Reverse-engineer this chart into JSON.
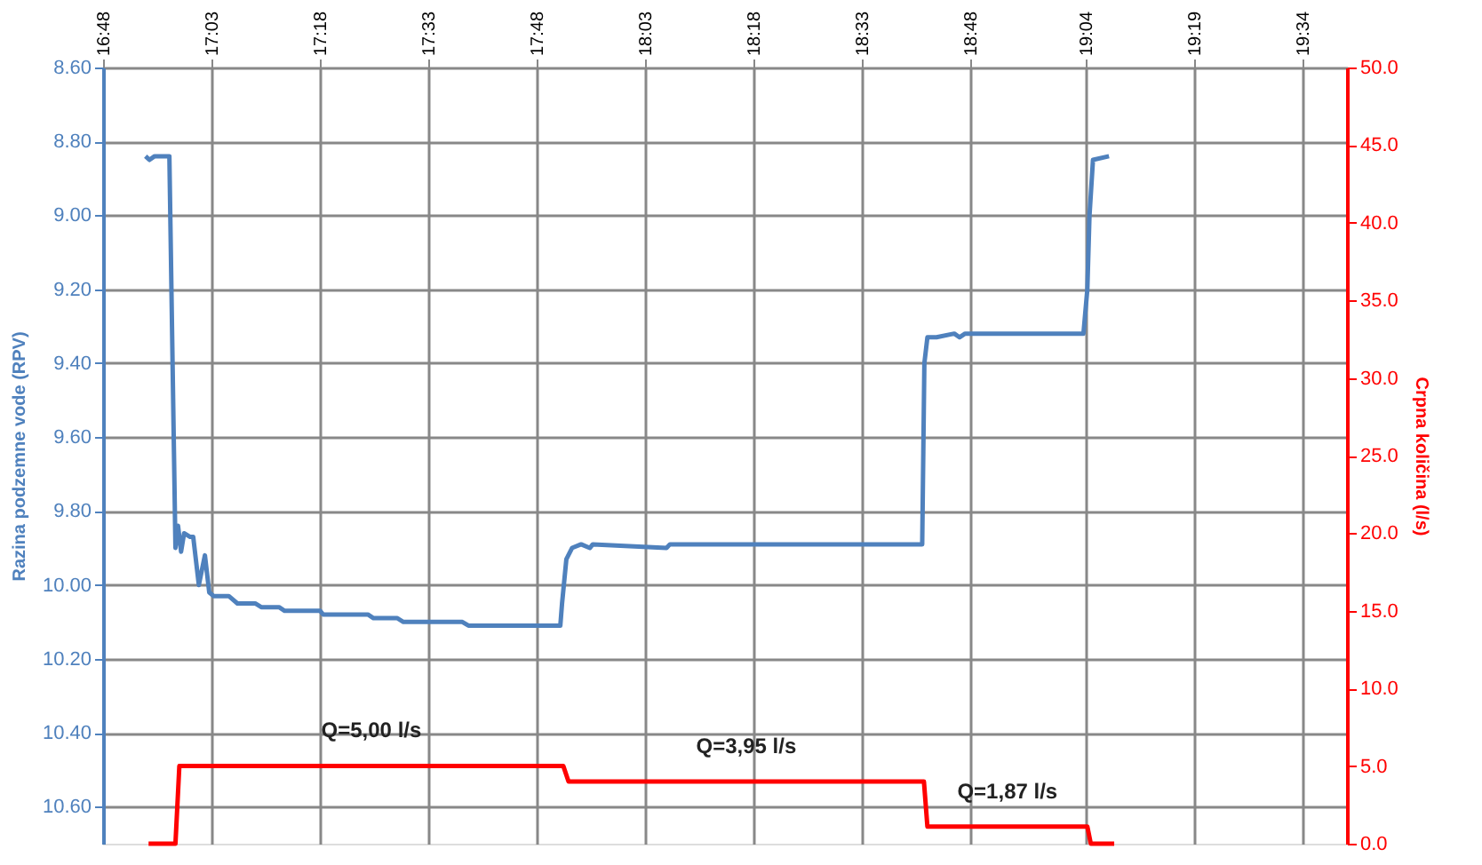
{
  "chart_data": {
    "type": "line",
    "ylabel": "Razina podzemne vode (RPV)",
    "y2label": "Crpna količina (l/s)",
    "xlim": [
      16.8,
      19.67
    ],
    "xticks": [
      {
        "value": 16.8,
        "label": "16:48"
      },
      {
        "value": 17.05,
        "label": "17:03"
      },
      {
        "value": 17.3,
        "label": "17:18"
      },
      {
        "value": 17.55,
        "label": "17:33"
      },
      {
        "value": 17.8,
        "label": "17:48"
      },
      {
        "value": 18.05,
        "label": "18:03"
      },
      {
        "value": 18.3,
        "label": "18:18"
      },
      {
        "value": 18.55,
        "label": "18:33"
      },
      {
        "value": 18.8,
        "label": "18:48"
      },
      {
        "value": 19.067,
        "label": "19:04"
      },
      {
        "value": 19.317,
        "label": "19:19"
      },
      {
        "value": 19.567,
        "label": "19:34"
      }
    ],
    "ylim": [
      10.7,
      8.6
    ],
    "yticks": [
      {
        "value": 8.6,
        "label": "8.60"
      },
      {
        "value": 8.8,
        "label": "8.80"
      },
      {
        "value": 9.0,
        "label": "9.00"
      },
      {
        "value": 9.2,
        "label": "9.20"
      },
      {
        "value": 9.4,
        "label": "9.40"
      },
      {
        "value": 9.6,
        "label": "9.60"
      },
      {
        "value": 9.8,
        "label": "9.80"
      },
      {
        "value": 10.0,
        "label": "10.00"
      },
      {
        "value": 10.2,
        "label": "10.20"
      },
      {
        "value": 10.4,
        "label": "10.40"
      },
      {
        "value": 10.6,
        "label": "10.60"
      }
    ],
    "y2lim": [
      0,
      50
    ],
    "y2ticks": [
      {
        "value": 0,
        "label": "0.0"
      },
      {
        "value": 5,
        "label": "5.0"
      },
      {
        "value": 10,
        "label": "10.0"
      },
      {
        "value": 15,
        "label": "15.0"
      },
      {
        "value": 20,
        "label": "20.0"
      },
      {
        "value": 25,
        "label": "25.0"
      },
      {
        "value": 30,
        "label": "30.0"
      },
      {
        "value": 35,
        "label": "35.0"
      },
      {
        "value": 40,
        "label": "40.0"
      },
      {
        "value": 45,
        "label": "45.0"
      },
      {
        "value": 50,
        "label": "50.0"
      }
    ],
    "grid": true,
    "series": [
      {
        "color": "#4f81bd",
        "x": [
          16.898,
          16.907,
          16.919,
          16.953,
          16.967,
          16.973,
          16.98,
          16.987,
          17.001,
          17.008,
          17.021,
          17.035,
          17.045,
          17.055,
          17.09,
          17.11,
          17.151,
          17.165,
          17.206,
          17.219,
          17.301,
          17.308,
          17.411,
          17.424,
          17.479,
          17.493,
          17.629,
          17.643,
          17.855,
          17.859,
          17.869,
          17.882,
          17.903,
          17.923,
          17.93,
          18.1,
          18.108,
          18.69,
          18.695,
          18.702,
          18.723,
          18.764,
          18.776,
          18.789,
          18.805,
          19.062,
          19.071,
          19.076,
          19.084,
          19.121
        ],
        "values": [
          8.84,
          8.85,
          8.84,
          8.84,
          9.9,
          9.84,
          9.91,
          9.86,
          9.87,
          9.87,
          10.0,
          9.92,
          10.02,
          10.03,
          10.03,
          10.05,
          10.05,
          10.06,
          10.06,
          10.07,
          10.07,
          10.08,
          10.08,
          10.09,
          10.09,
          10.1,
          10.1,
          10.11,
          10.11,
          10.05,
          9.93,
          9.9,
          9.89,
          9.9,
          9.89,
          9.9,
          9.89,
          9.89,
          9.4,
          9.33,
          9.33,
          9.32,
          9.33,
          9.32,
          9.32,
          9.32,
          9.2,
          9.0,
          8.85,
          8.84
        ]
      },
      {
        "color": "#ff0000",
        "axis": "y2",
        "x": [
          16.905,
          16.967,
          16.976,
          17.862,
          17.874,
          18.694,
          18.702,
          19.071,
          19.079,
          19.133
        ],
        "values": [
          0,
          0,
          5,
          5,
          4.0,
          4.0,
          1.1,
          1.1,
          0,
          0
        ]
      }
    ],
    "annotations": [
      "Q=5,00  l/s",
      "Q=3,95  l/s",
      "Q=1,87  l/s"
    ]
  }
}
